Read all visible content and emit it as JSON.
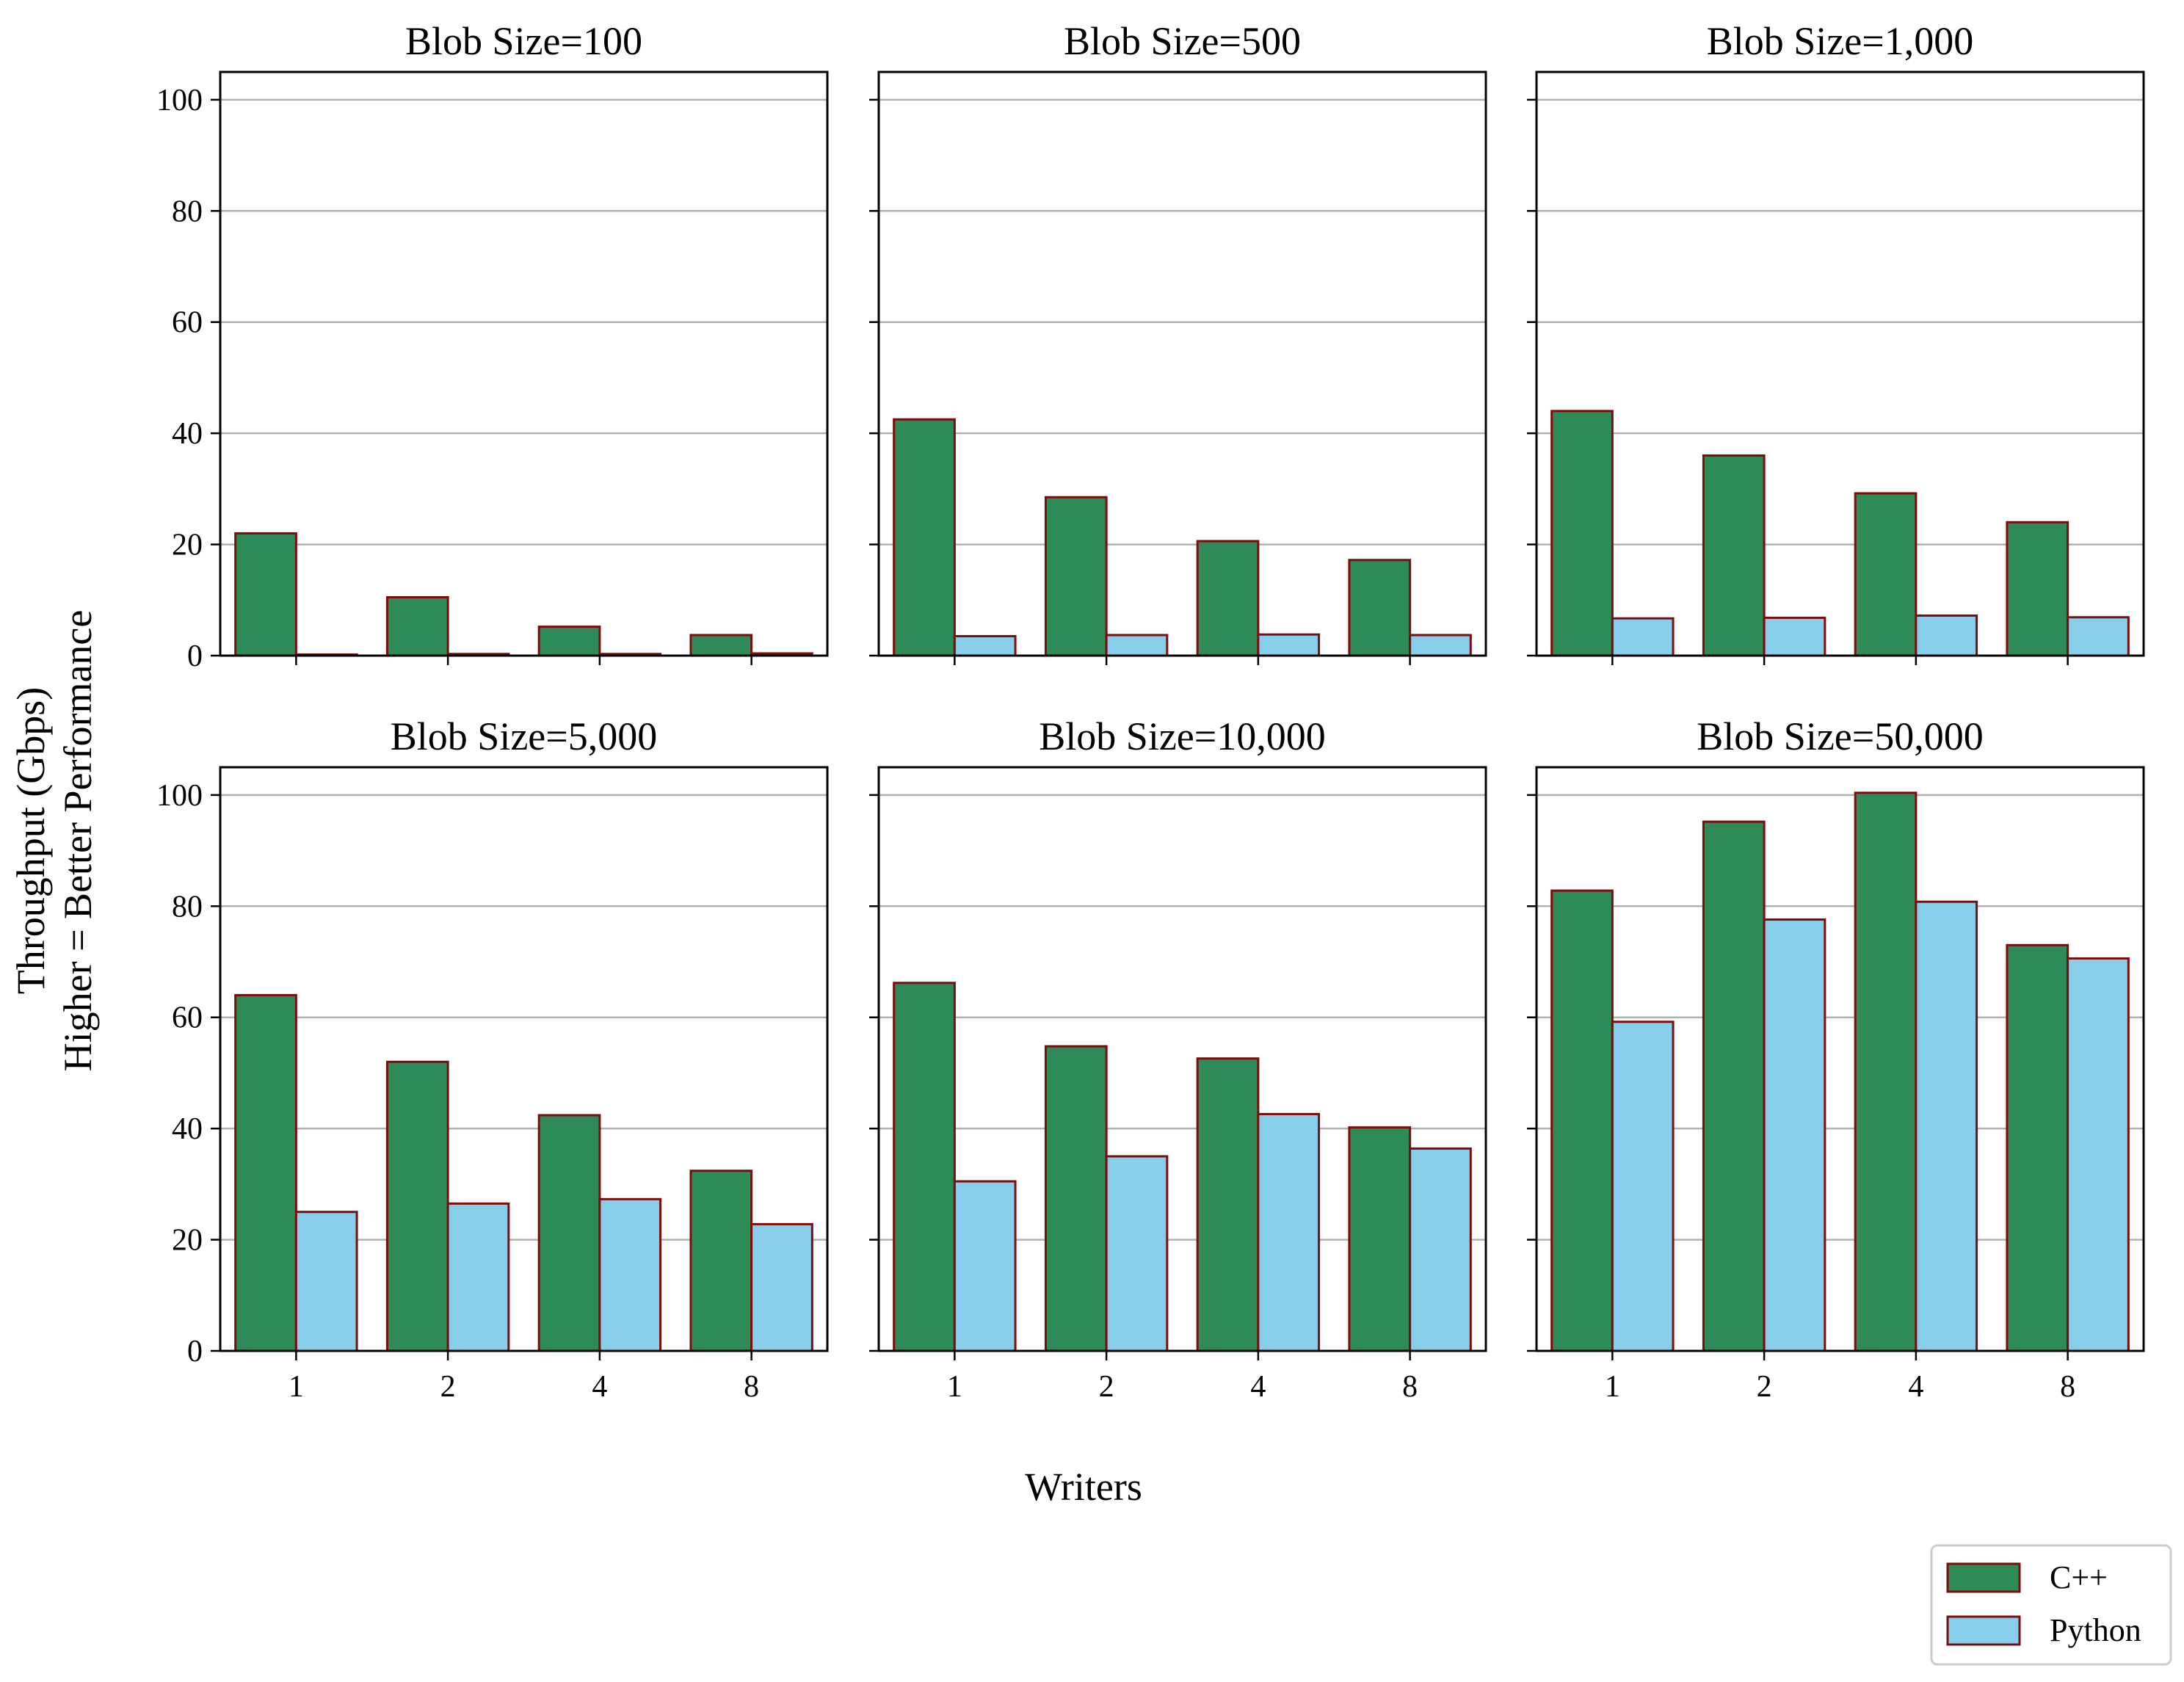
{
  "chart_data": {
    "type": "bar",
    "xlabel": "Writers",
    "ylabel": [
      "Throughput (Gbps)",
      "Higher = Better Performance"
    ],
    "categories": [
      "1",
      "2",
      "4",
      "8"
    ],
    "ylim": [
      0,
      105
    ],
    "yticks": [
      0,
      20,
      40,
      60,
      80,
      100
    ],
    "grid": "horizontal",
    "legend_position": "bottom-right",
    "legend": [
      {
        "name": "C++",
        "color": "#2e8b57"
      },
      {
        "name": "Python",
        "color": "#87ceeb"
      }
    ],
    "bar_edge_color": "#7b0d0d",
    "panels": [
      {
        "title": "Blob Size=100",
        "series": [
          {
            "name": "C++",
            "values": [
              22,
              10.5,
              5.2,
              3.7
            ]
          },
          {
            "name": "Python",
            "values": [
              0.2,
              0.3,
              0.3,
              0.4
            ]
          }
        ]
      },
      {
        "title": "Blob Size=500",
        "series": [
          {
            "name": "C++",
            "values": [
              42.5,
              28.5,
              20.6,
              17.2
            ]
          },
          {
            "name": "Python",
            "values": [
              3.5,
              3.7,
              3.8,
              3.7
            ]
          }
        ]
      },
      {
        "title": "Blob Size=1,000",
        "series": [
          {
            "name": "C++",
            "values": [
              44,
              36,
              29.2,
              24
            ]
          },
          {
            "name": "Python",
            "values": [
              6.7,
              6.8,
              7.2,
              6.9
            ]
          }
        ]
      },
      {
        "title": "Blob Size=5,000",
        "series": [
          {
            "name": "C++",
            "values": [
              64,
              52,
              42.4,
              32.4
            ]
          },
          {
            "name": "Python",
            "values": [
              25,
              26.5,
              27.3,
              22.8
            ]
          }
        ]
      },
      {
        "title": "Blob Size=10,000",
        "series": [
          {
            "name": "C++",
            "values": [
              66.2,
              54.8,
              52.6,
              40.2
            ]
          },
          {
            "name": "Python",
            "values": [
              30.5,
              35,
              42.6,
              36.4
            ]
          }
        ]
      },
      {
        "title": "Blob Size=50,000",
        "series": [
          {
            "name": "C++",
            "values": [
              82.8,
              95.2,
              100.4,
              73
            ]
          },
          {
            "name": "Python",
            "values": [
              59.2,
              77.6,
              80.8,
              70.6
            ]
          }
        ]
      }
    ]
  }
}
